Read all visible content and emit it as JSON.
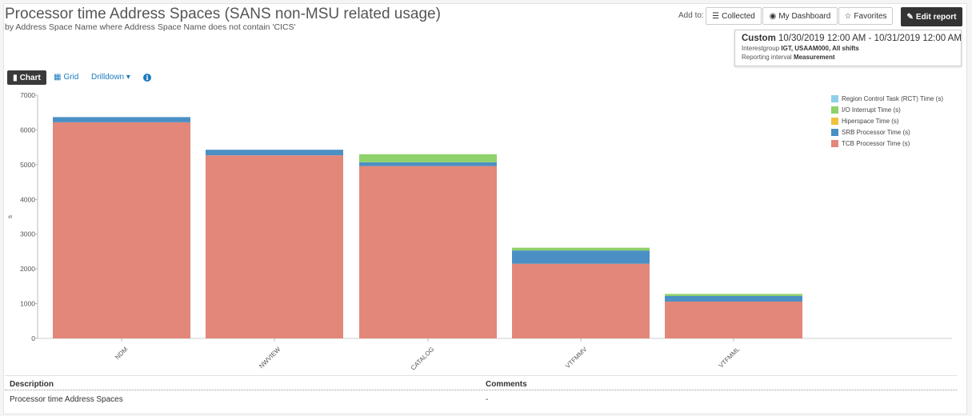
{
  "header": {
    "title": "Processor time Address Spaces (SANS non-MSU related usage)",
    "subtitle": "by Address Space Name where Address Space Name does not contain 'CICS'"
  },
  "toolbar": {
    "add_to_label": "Add to:",
    "collected_label": "Collected",
    "dashboard_label": "My Dashboard",
    "favorites_label": "Favorites",
    "edit_label": "Edit report"
  },
  "period": {
    "label": "Custom",
    "range": "10/30/2019 12:00 AM - 10/31/2019 12:00 AM",
    "interest_prefix": "Interestgroup",
    "interest_value": "IGT, USAAM000, All shifts",
    "interval_prefix": "Reporting interval",
    "interval_value": "Measurement"
  },
  "view": {
    "chart_label": "Chart",
    "grid_label": "Grid",
    "drilldown_label": "Drilldown",
    "info_glyph": "i"
  },
  "chart_data": {
    "type": "bar",
    "stacked": true,
    "categories": [
      "NDM",
      "NWVIEW",
      "CATALOG",
      "VTFMMV",
      "VTFMML"
    ],
    "ylabel": "s",
    "ylim": [
      0,
      7000
    ],
    "yticks": [
      0,
      1000,
      2000,
      3000,
      4000,
      5000,
      6000,
      7000
    ],
    "grid": false,
    "legend_position": "top-right",
    "series": [
      {
        "name": "TCB Processor Time (s)",
        "color": "#e2877a",
        "values": [
          6220,
          5270,
          4960,
          2150,
          1060
        ]
      },
      {
        "name": "SRB Processor Time (s)",
        "color": "#4a90c4",
        "values": [
          150,
          160,
          110,
          380,
          160
        ]
      },
      {
        "name": "Hiperspace Time (s)",
        "color": "#f0c040",
        "values": [
          0,
          0,
          0,
          0,
          0
        ]
      },
      {
        "name": "I/O Interrupt Time (s)",
        "color": "#8fd16a",
        "values": [
          0,
          0,
          230,
          80,
          60
        ]
      },
      {
        "name": "Region Control Task (RCT) Time (s)",
        "color": "#8ecfe8",
        "values": [
          0,
          0,
          0,
          0,
          0
        ]
      }
    ],
    "legend_order": [
      "Region Control Task (RCT) Time (s)",
      "I/O Interrupt Time (s)",
      "Hiperspace Time (s)",
      "SRB Processor Time (s)",
      "TCB Processor Time (s)"
    ]
  },
  "details": {
    "columns": [
      "Description",
      "Comments"
    ],
    "rows": [
      [
        "Processor time Address Spaces",
        "-"
      ]
    ]
  }
}
